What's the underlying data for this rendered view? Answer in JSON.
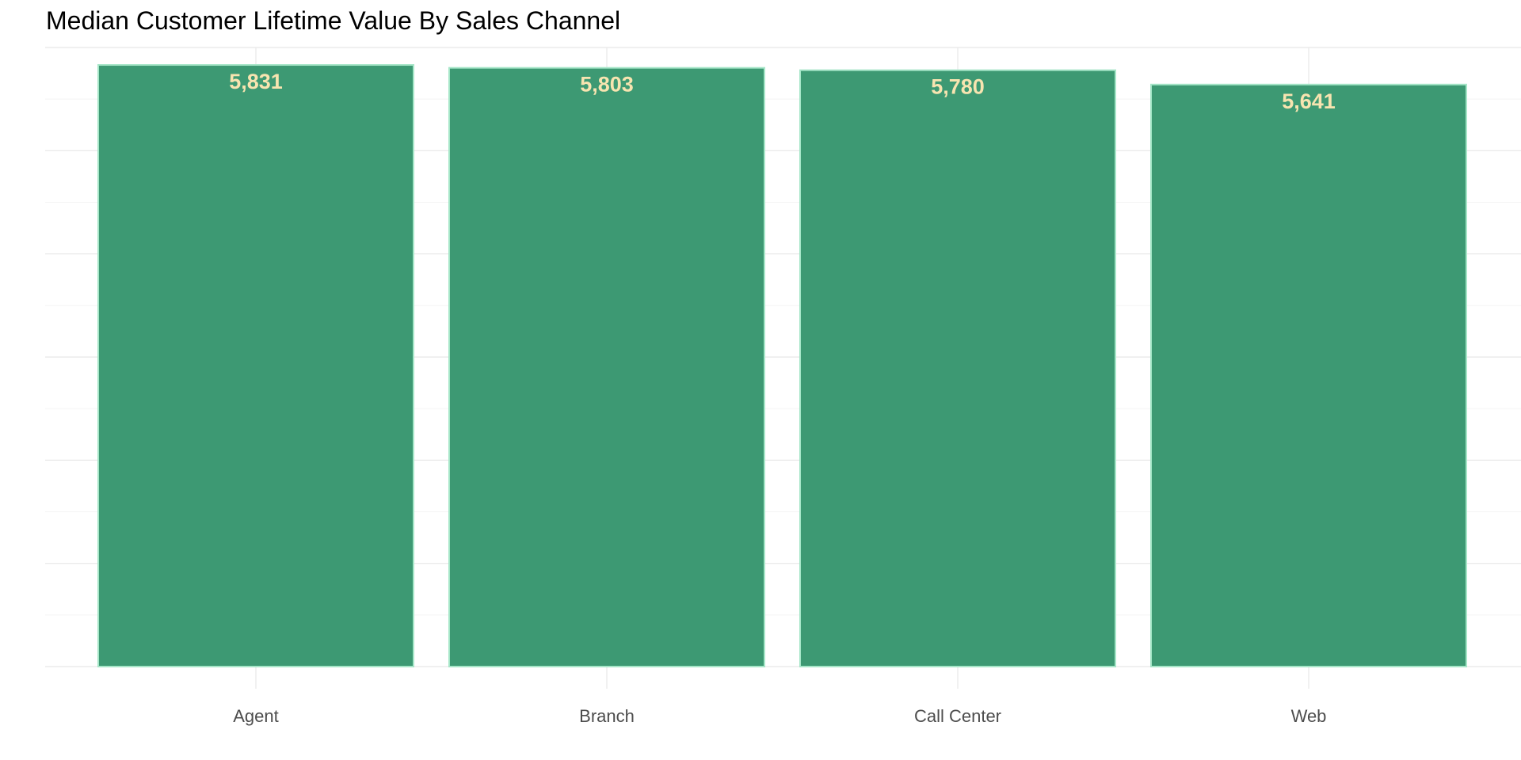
{
  "chart_data": {
    "type": "bar",
    "title": "Median Customer Lifetime Value By Sales Channel",
    "xlabel": "",
    "ylabel": "",
    "categories": [
      "Agent",
      "Branch",
      "Call Center",
      "Web"
    ],
    "values": [
      5831,
      5803,
      5780,
      5641
    ],
    "value_labels": [
      "5,831",
      "5,803",
      "5,780",
      "5,641"
    ],
    "ylim": [
      0,
      6000
    ],
    "grid": true,
    "legend": "none",
    "colors": {
      "bar_fill": "#3d9973",
      "bar_outline": "#a6e6c8",
      "value_label": "#f7e4b0"
    }
  }
}
